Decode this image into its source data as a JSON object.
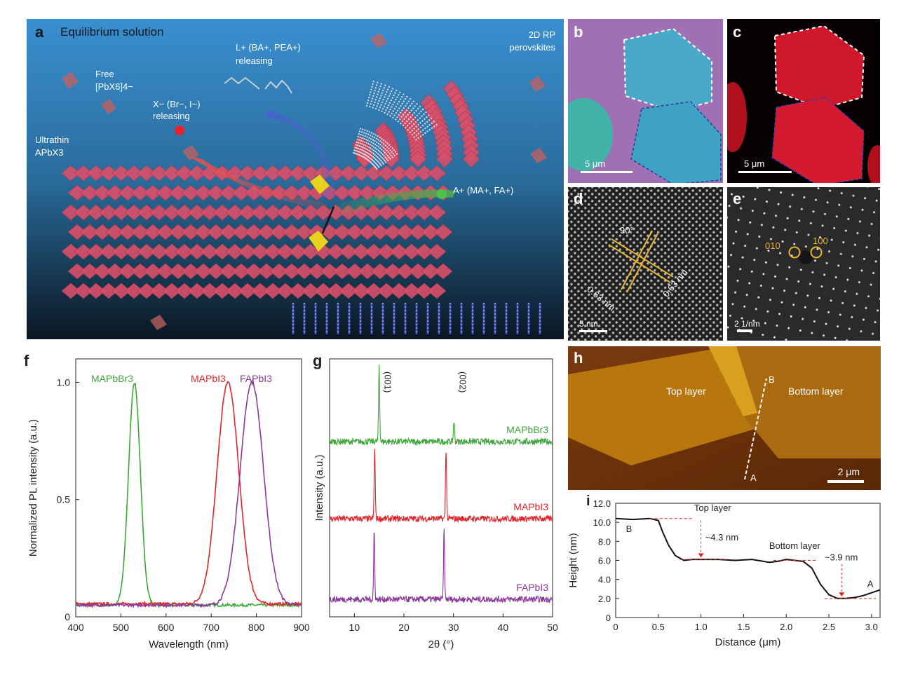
{
  "panel_a": {
    "label": "a",
    "title": "Equilibrium solution",
    "free_label_1": "Free",
    "free_label_2": "[PbX6]4−",
    "x_release_1": "X− (Br−, I−)",
    "x_release_2": "releasing",
    "l_release_1": "L+ (BA+, PEA+)",
    "l_release_2": "releasing",
    "rp_1": "2D RP",
    "rp_2": "perovskites",
    "ultrathin_1": "Ultrathin",
    "ultrathin_2": "APbX3",
    "a_cation": "A+ (MA+, FA+)"
  },
  "panel_b": {
    "label": "b",
    "scale": "5 μm"
  },
  "panel_c": {
    "label": "c",
    "scale": "5 μm"
  },
  "panel_d": {
    "label": "d",
    "scale": "5 nm",
    "angle": "90°",
    "spacing_1": "0.63 nm",
    "spacing_2": "0.63 nm"
  },
  "panel_e": {
    "label": "e",
    "scale": "2 1/nm",
    "spot_1": "010",
    "spot_2": "100"
  },
  "panel_h": {
    "label": "h",
    "top": "Top layer",
    "bottom": "Bottom layer",
    "point_a": "A",
    "point_b": "B",
    "scale": "2 μm"
  },
  "chart_data": [
    {
      "id": "f",
      "type": "line",
      "xlabel": "Wavelength (nm)",
      "ylabel": "Normalized PL intensity (a.u.)",
      "xlim": [
        400,
        900
      ],
      "ylim": [
        0,
        1.1
      ],
      "xticks": [
        "400",
        "500",
        "600",
        "700",
        "800",
        "900"
      ],
      "yticks": [
        "0",
        "0.5",
        "1.0"
      ],
      "series": [
        {
          "name": "MAPbBr3",
          "color": "#3fa63a",
          "peak": 530,
          "width": 13,
          "baseline": 0.05
        },
        {
          "name": "MAPbI3",
          "color": "#e3242b",
          "peak": 737,
          "width": 24,
          "baseline": 0.055
        },
        {
          "name": "FAPbI3",
          "color": "#8b3a9c",
          "peak": 790,
          "width": 26,
          "baseline": 0.05
        }
      ]
    },
    {
      "id": "g",
      "type": "line",
      "xlabel": "2θ (°)",
      "ylabel": "Intensity (a.u.)",
      "xlim": [
        5,
        50
      ],
      "xticks": [
        "10",
        "20",
        "30",
        "40",
        "50"
      ],
      "peak_labels": [
        "(001)",
        "(002)"
      ],
      "series": [
        {
          "name": "MAPbBr3",
          "color": "#3fa63a",
          "peaks": [
            15.0,
            30.1
          ]
        },
        {
          "name": "MAPbI3",
          "color": "#e3242b",
          "peaks": [
            14.1,
            28.5
          ]
        },
        {
          "name": "FAPbI3",
          "color": "#8b3a9c",
          "peaks": [
            14.0,
            28.1
          ]
        }
      ]
    },
    {
      "id": "i",
      "type": "line",
      "xlabel": "Distance (μm)",
      "ylabel": "Height (nm)",
      "xlim": [
        0,
        3.1
      ],
      "ylim": [
        0,
        12
      ],
      "xticks": [
        "0",
        "0.5",
        "1.0",
        "1.5",
        "2.0",
        "2.5",
        "3.0"
      ],
      "yticks": [
        "0",
        "2.0",
        "4.0",
        "6.0",
        "8.0",
        "10.0",
        "12.0"
      ],
      "x": [
        0,
        0.2,
        0.4,
        0.5,
        0.55,
        0.62,
        0.7,
        0.8,
        0.9,
        1.0,
        1.2,
        1.4,
        1.6,
        1.8,
        1.9,
        2.0,
        2.1,
        2.2,
        2.3,
        2.4,
        2.5,
        2.6,
        2.7,
        2.8,
        2.9,
        3.0,
        3.1
      ],
      "y": [
        10.4,
        10.3,
        10.4,
        10.2,
        9.0,
        7.6,
        6.5,
        6.0,
        6.1,
        6.1,
        6.1,
        6.0,
        6.1,
        5.8,
        5.9,
        6.1,
        6.0,
        5.9,
        5.2,
        3.5,
        2.4,
        2.0,
        2.0,
        2.1,
        2.3,
        2.6,
        2.9
      ],
      "annotations": {
        "top_layer": "Top layer",
        "bottom_layer": "Bottom layer",
        "step1": "~4.3 nm",
        "step2": "~3.9 nm",
        "point_a": "A",
        "point_b": "B"
      }
    }
  ],
  "colors": {
    "bg_top": "#2f86c8",
    "bg_bottom": "#0b1a2a",
    "octahedra": "#d9506a",
    "ligand_dark": "#3a4cb5"
  }
}
